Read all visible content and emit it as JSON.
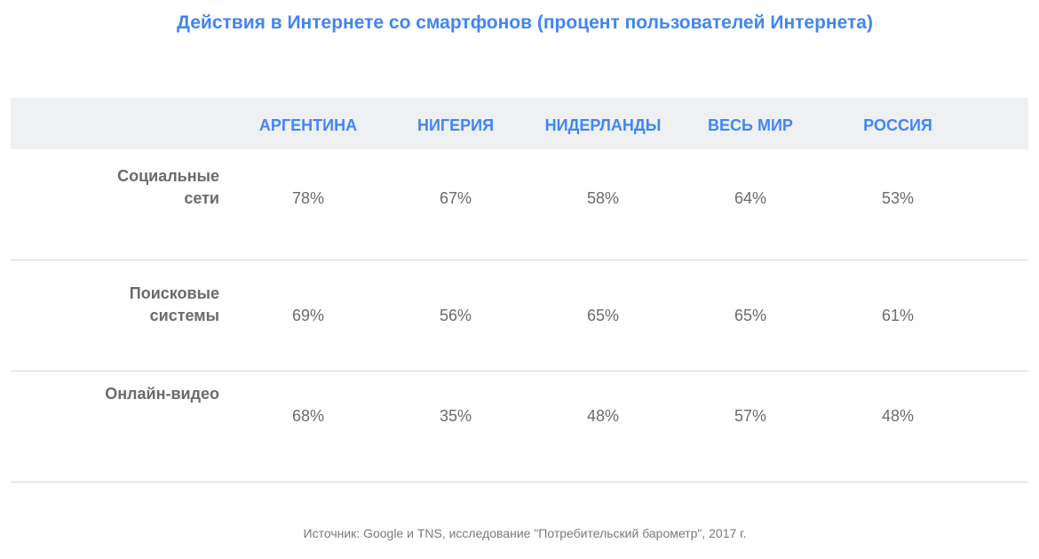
{
  "chart_data": {
    "type": "table",
    "title": "Действия в Интернете со смартфонов (процент пользователей Интернета)",
    "columns": [
      "АРГЕНТИНА",
      "НИГЕРИЯ",
      "НИДЕРЛАНДЫ",
      "ВЕСЬ МИР",
      "РОССИЯ"
    ],
    "rows": [
      {
        "label_lines": [
          "Социальные",
          "сети"
        ],
        "values": [
          "78%",
          "67%",
          "58%",
          "64%",
          "53%"
        ]
      },
      {
        "label_lines": [
          "Поисковые",
          "системы"
        ],
        "values": [
          "69%",
          "56%",
          "65%",
          "65%",
          "61%"
        ]
      },
      {
        "label_lines": [
          "Онлайн-видео"
        ],
        "values": [
          "68%",
          "35%",
          "48%",
          "57%",
          "48%"
        ]
      }
    ],
    "source": "Источник: Google и TNS, исследование \"Потребительский барометр\", 2017 г."
  },
  "colors": {
    "accent": "#4285f4",
    "text": "#6b6b6b",
    "header_bg": "#eef0f2",
    "divider": "#d9d9d9"
  }
}
